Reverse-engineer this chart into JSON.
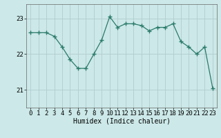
{
  "x": [
    0,
    1,
    2,
    3,
    4,
    5,
    6,
    7,
    8,
    9,
    10,
    11,
    12,
    13,
    14,
    15,
    16,
    17,
    18,
    19,
    20,
    21,
    22,
    23
  ],
  "y": [
    22.6,
    22.6,
    22.6,
    22.5,
    22.2,
    21.85,
    21.6,
    21.6,
    22.0,
    22.4,
    23.05,
    22.75,
    22.85,
    22.85,
    22.8,
    22.65,
    22.75,
    22.75,
    22.85,
    22.35,
    22.2,
    22.0,
    22.2,
    21.05
  ],
  "line_color": "#2a7a6a",
  "marker": "+",
  "marker_size": 4,
  "bg_color": "#cce8e8",
  "grid_color": "#b0cccc",
  "xlabel": "Humidex (Indice chaleur)",
  "xlabel_fontsize": 7,
  "yticks": [
    21,
    22,
    23
  ],
  "ylim": [
    20.5,
    23.4
  ],
  "xlim": [
    -0.5,
    23.5
  ],
  "tick_fontsize": 6.5,
  "linewidth": 0.9
}
